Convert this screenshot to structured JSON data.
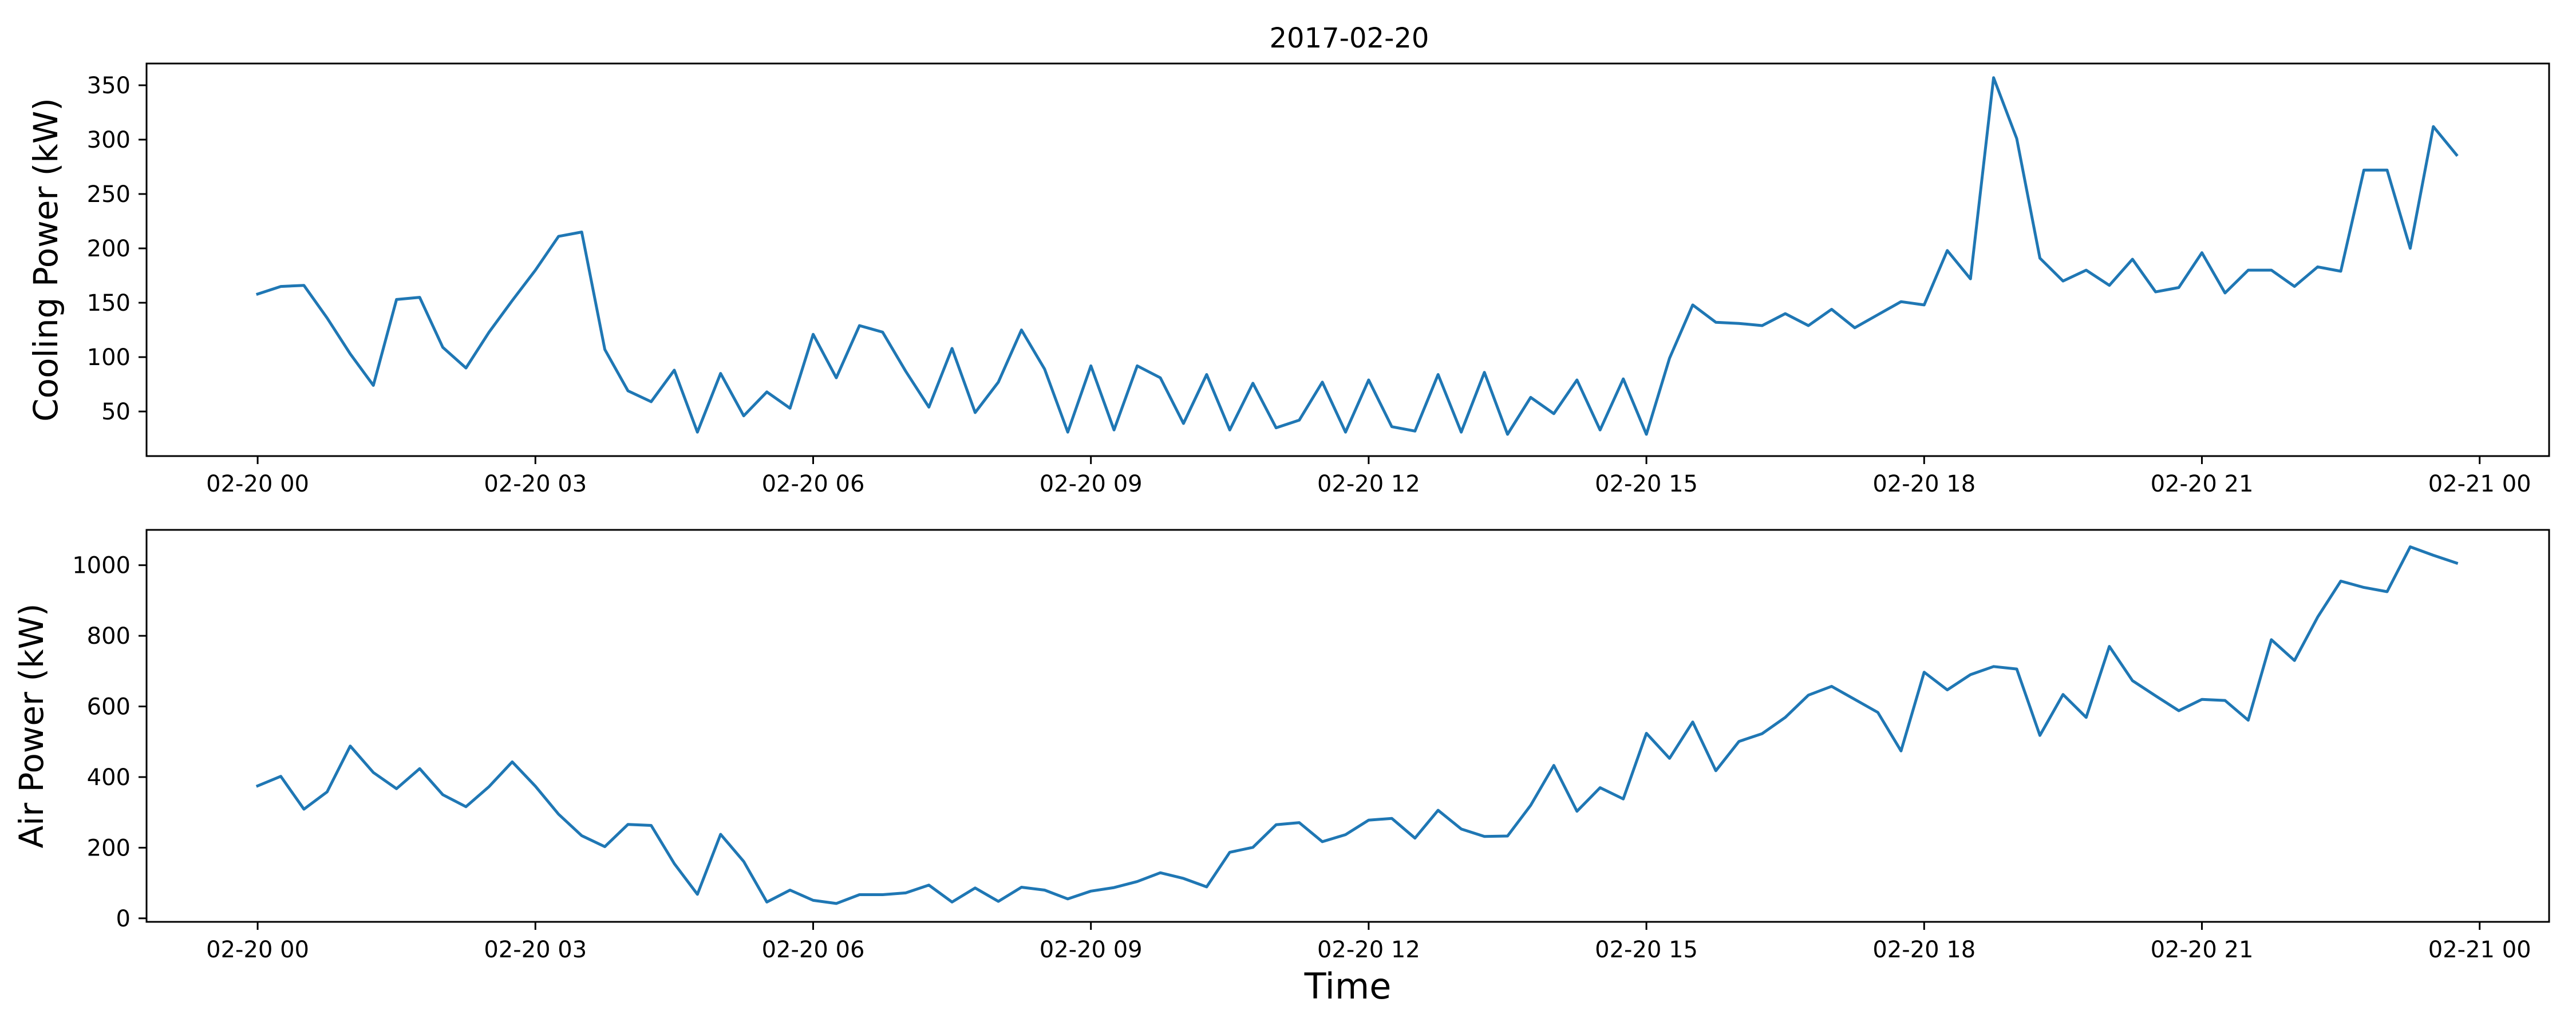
{
  "figure_title": "2017-02-20",
  "line_color": "#1f77b4",
  "chart_data": [
    {
      "type": "line",
      "title": "2017-02-20",
      "xlabel": "",
      "ylabel": "Cooling Power (kW)",
      "x_tick_labels": [
        "02-20 00",
        "02-20 03",
        "02-20 06",
        "02-20 09",
        "02-20 12",
        "02-20 15",
        "02-20 18",
        "02-20 21",
        "02-21 00"
      ],
      "x_tick_hours": [
        0,
        3,
        6,
        9,
        12,
        15,
        18,
        21,
        24
      ],
      "xlim_hours": [
        -1.2,
        24.75
      ],
      "y_tick_labels": [
        "50",
        "100",
        "150",
        "200",
        "250",
        "300",
        "350"
      ],
      "y_ticks": [
        50,
        100,
        150,
        200,
        250,
        300,
        350
      ],
      "ylim": [
        9,
        370
      ],
      "grid": false,
      "x_step_minutes": 15,
      "x_start": "2017-02-20 00:00",
      "series": [
        {
          "values": [
            158,
            165,
            166,
            136,
            103,
            74,
            153,
            155,
            109,
            90,
            123,
            152,
            180,
            211,
            215,
            107,
            69,
            59,
            88,
            31,
            85,
            46,
            68,
            53,
            121,
            81,
            129,
            123,
            87,
            54,
            108,
            49,
            77,
            125,
            89,
            31,
            92,
            33,
            92,
            81,
            39,
            84,
            33,
            76,
            35,
            42,
            77,
            31,
            79,
            36,
            32,
            84,
            31,
            86,
            29,
            63,
            48,
            79,
            33,
            80,
            29,
            99,
            148,
            132,
            131,
            129,
            140,
            129,
            144,
            127,
            139,
            151,
            148,
            198,
            172,
            357,
            301,
            191,
            170,
            180,
            166,
            190,
            160,
            164,
            196,
            159,
            180,
            180,
            165,
            183,
            179,
            272,
            272,
            200,
            312,
            286
          ]
        }
      ]
    },
    {
      "type": "line",
      "title": "",
      "xlabel": "Time",
      "ylabel": "Air Power (kW)",
      "x_tick_labels": [
        "02-20 00",
        "02-20 03",
        "02-20 06",
        "02-20 09",
        "02-20 12",
        "02-20 15",
        "02-20 18",
        "02-20 21",
        "02-21 00"
      ],
      "x_tick_hours": [
        0,
        3,
        6,
        9,
        12,
        15,
        18,
        21,
        24
      ],
      "xlim_hours": [
        -1.2,
        24.75
      ],
      "y_tick_labels": [
        "0",
        "200",
        "400",
        "600",
        "800",
        "1000"
      ],
      "y_ticks": [
        0,
        200,
        400,
        600,
        800,
        1000
      ],
      "ylim": [
        -10,
        1100
      ],
      "grid": false,
      "x_step_minutes": 15,
      "x_start": "2017-02-20 00:00",
      "series": [
        {
          "values": [
            375,
            402,
            309,
            358,
            488,
            413,
            367,
            424,
            350,
            316,
            373,
            443,
            374,
            295,
            234,
            203,
            266,
            263,
            155,
            68,
            238,
            161,
            46,
            80,
            51,
            42,
            67,
            67,
            72,
            94,
            46,
            86,
            48,
            88,
            80,
            55,
            77,
            87,
            104,
            129,
            113,
            89,
            187,
            201,
            265,
            271,
            217,
            237,
            278,
            283,
            227,
            306,
            253,
            232,
            233,
            320,
            433,
            303,
            370,
            338,
            524,
            453,
            556,
            418,
            501,
            523,
            569,
            632,
            657,
            620,
            583,
            474,
            697,
            647,
            690,
            713,
            706,
            518,
            634,
            569,
            770,
            673,
            630,
            588,
            620,
            617,
            561,
            789,
            730,
            853,
            955,
            937,
            925,
            1052,
            1028,
            1006
          ]
        }
      ]
    }
  ]
}
